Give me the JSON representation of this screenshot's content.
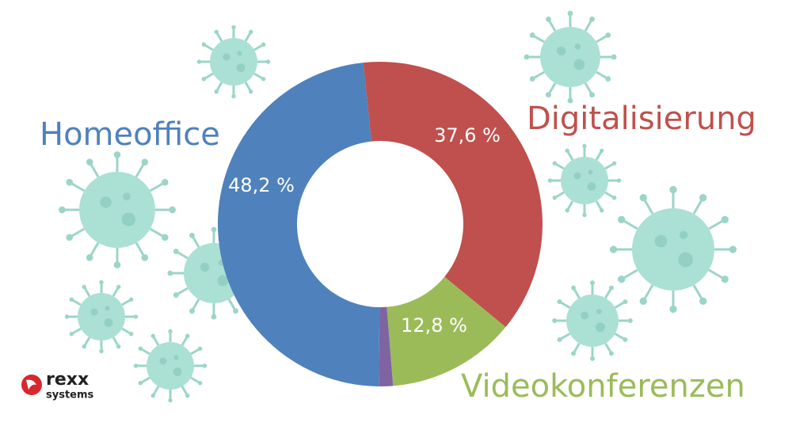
{
  "chart_data": {
    "type": "donut",
    "categories": [
      "Digitalisierung",
      "Videokonferenzen",
      null,
      "Homeoffice"
    ],
    "values": [
      37.6,
      12.8,
      1.4,
      48.2
    ],
    "value_labels": [
      "37,6 %",
      "12,8 %",
      null,
      "48,2 %"
    ],
    "colors": [
      "#c0504d",
      "#9bbb59",
      "#8064a2",
      "#4f81bd"
    ]
  },
  "logo": {
    "name": "rexx",
    "tagline": "systems"
  }
}
